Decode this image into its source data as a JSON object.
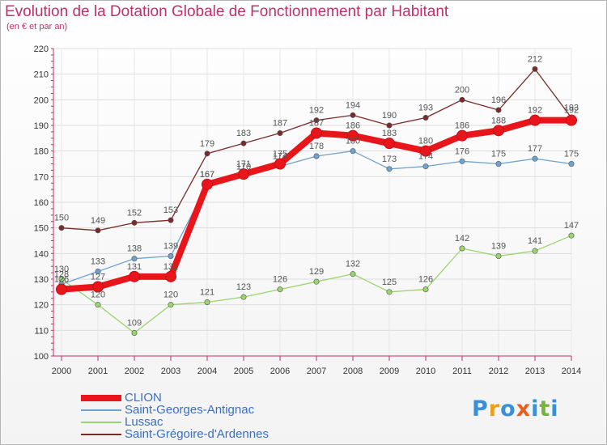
{
  "title": "Evolution de la Dotation Globale de Fonctionnement par Habitant",
  "subtitle": "(en € et par an)",
  "logo": {
    "text": "Proxiti",
    "letters": [
      {
        "ch": "P",
        "color": "#3b8fd6"
      },
      {
        "ch": "r",
        "color": "#e8a020"
      },
      {
        "ch": "o",
        "color": "#3b8fd6"
      },
      {
        "ch": "x",
        "color": "#e8601c"
      },
      {
        "ch": "i",
        "color": "#3b8fd6"
      },
      {
        "ch": "t",
        "color": "#7ab33c"
      },
      {
        "ch": "i",
        "color": "#3b8fd6"
      }
    ]
  },
  "chart_data": {
    "type": "line",
    "x": [
      "2000",
      "2001",
      "2002",
      "2003",
      "2004",
      "2005",
      "2006",
      "2007",
      "2008",
      "2009",
      "2010",
      "2011",
      "2012",
      "2013",
      "2014"
    ],
    "ylim": [
      100,
      220
    ],
    "yticks": [
      100,
      110,
      120,
      130,
      140,
      150,
      160,
      170,
      180,
      190,
      200,
      210,
      220
    ],
    "grid": true,
    "legend_position": "bottom-left",
    "series": [
      {
        "name": "CLION",
        "color": "#e8161b",
        "values": [
          126,
          127,
          131,
          131,
          167,
          171,
          175,
          187,
          186,
          183,
          180,
          186,
          188,
          192,
          192
        ]
      },
      {
        "name": "Saint-Georges-Antignac",
        "color": "#6fa3cf",
        "values": [
          128,
          133,
          138,
          139,
          167,
          170,
          174,
          178,
          180,
          173,
          174,
          176,
          175,
          177,
          175
        ]
      },
      {
        "name": "Lussac",
        "color": "#99d46e",
        "values": [
          130,
          120,
          109,
          120,
          121,
          123,
          126,
          129,
          132,
          125,
          126,
          142,
          139,
          141,
          147
        ]
      },
      {
        "name": "Saint-Grégoire-d'Ardennes",
        "color": "#7a2a2a",
        "values": [
          150,
          149,
          152,
          153,
          179,
          183,
          187,
          192,
          194,
          190,
          193,
          200,
          196,
          212,
          193
        ]
      }
    ]
  }
}
